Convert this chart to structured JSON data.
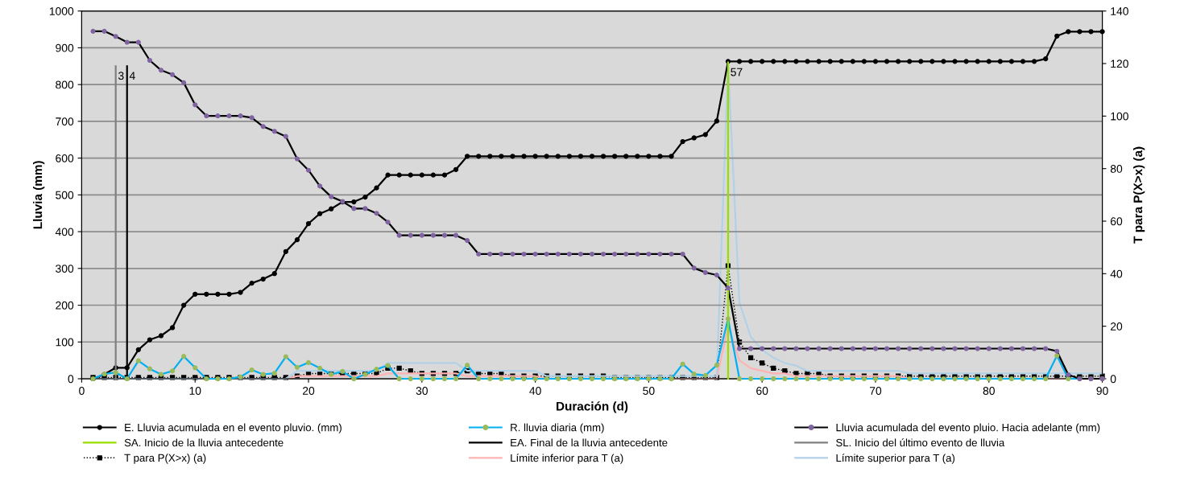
{
  "chart_data": {
    "type": "line",
    "xlabel": "Duración (d)",
    "ylabel": "Lluvia (mm)",
    "y2label": "T para P(X>x) (a)",
    "x": [
      1,
      2,
      3,
      4,
      5,
      6,
      7,
      8,
      9,
      10,
      11,
      12,
      13,
      14,
      15,
      16,
      17,
      18,
      19,
      20,
      21,
      22,
      23,
      24,
      25,
      26,
      27,
      28,
      29,
      30,
      31,
      32,
      33,
      34,
      35,
      36,
      37,
      38,
      39,
      40,
      41,
      42,
      43,
      44,
      45,
      46,
      47,
      48,
      49,
      50,
      51,
      52,
      53,
      54,
      55,
      56,
      57,
      58,
      59,
      60,
      61,
      62,
      63,
      64,
      65,
      66,
      67,
      68,
      69,
      70,
      71,
      72,
      73,
      74,
      75,
      76,
      77,
      78,
      79,
      80,
      81,
      82,
      83,
      84,
      85,
      86,
      87,
      88,
      89,
      90
    ],
    "xlim": [
      0,
      90
    ],
    "xticks": [
      0,
      10,
      20,
      30,
      40,
      50,
      60,
      70,
      80,
      90
    ],
    "ylim": [
      0,
      1000
    ],
    "yticks": [
      0,
      100,
      200,
      300,
      400,
      500,
      600,
      700,
      800,
      900,
      1000
    ],
    "y2lim": [
      0,
      140
    ],
    "y2ticks": [
      0,
      20,
      40,
      60,
      80,
      100,
      120,
      140
    ],
    "grid": "y",
    "legend": "bottom",
    "series": [
      {
        "name": "E. Lluvia acumulada en el evento pluvio. (mm)",
        "color": "#000000",
        "marker": "circle",
        "line_style": "solid",
        "values": [
          0,
          12,
          30,
          30,
          79,
          106,
          117,
          139,
          200,
          230,
          230,
          230,
          230,
          235,
          260,
          271,
          286,
          346,
          378,
          422,
          449,
          462,
          481,
          481,
          494,
          519,
          554,
          554,
          554,
          554,
          554,
          554,
          569,
          605,
          605,
          605,
          605,
          605,
          605,
          605,
          605,
          605,
          605,
          605,
          605,
          605,
          605,
          605,
          605,
          605,
          605,
          605,
          645,
          655,
          664,
          701,
          863,
          863,
          863,
          863,
          863,
          863,
          863,
          863,
          863,
          863,
          863,
          863,
          863,
          863,
          863,
          863,
          863,
          863,
          863,
          863,
          863,
          863,
          863,
          863,
          863,
          863,
          863,
          863,
          870,
          932,
          944,
          944,
          944,
          944
        ]
      },
      {
        "name": "R. lluvia diaria (mm)",
        "color": "#00b0f0",
        "colors": [
          "#9bbb59",
          "#9bbb59",
          "#9bbb59",
          "#9bbb59",
          "#9bbb59",
          "#9bbb59",
          "#9bbb59",
          "#9bbb59",
          "#9bbb59",
          "#9bbb59",
          "#9bbb59",
          "#9bbb59",
          "#9bbb59",
          "#9bbb59",
          "#9bbb59",
          "#9bbb59",
          "#9bbb59",
          "#9bbb59",
          "#9bbb59",
          "#9bbb59",
          "#9bbb59",
          "#9bbb59",
          "#9bbb59",
          "#9bbb59",
          "#9bbb59",
          "#9bbb59",
          "#9bbb59",
          "#9bbb59",
          "#9bbb59",
          "#9bbb59",
          "#9bbb59",
          "#9bbb59",
          "#9bbb59",
          "#9bbb59",
          "#9bbb59",
          "#9bbb59",
          "#9bbb59",
          "#9bbb59",
          "#9bbb59",
          "#9bbb59",
          "#9bbb59",
          "#9bbb59",
          "#9bbb59",
          "#9bbb59",
          "#9bbb59",
          "#9bbb59",
          "#9bbb59",
          "#9bbb59",
          "#9bbb59",
          "#9bbb59",
          "#9bbb59",
          "#9bbb59",
          "#9bbb59",
          "#9bbb59",
          "#9bbb59",
          "#9bbb59",
          "#9bbb59",
          "#9bbb59",
          "#9bbb59",
          "#9bbb59",
          "#9bbb59",
          "#9bbb59",
          "#9bbb59",
          "#9bbb59",
          "#9bbb59",
          "#9bbb59",
          "#9bbb59",
          "#9bbb59",
          "#9bbb59",
          "#9bbb59",
          "#9bbb59",
          "#9bbb59",
          "#9bbb59",
          "#9bbb59",
          "#9bbb59",
          "#9bbb59",
          "#9bbb59",
          "#9bbb59",
          "#9bbb59",
          "#9bbb59",
          "#9bbb59",
          "#9bbb59",
          "#9bbb59",
          "#9bbb59",
          "#9bbb59",
          "#9bbb59",
          "#9bbb59",
          "#9bbb59",
          "#9bbb59",
          "#9bbb59"
        ],
        "marker": "circle",
        "line_style": "solid",
        "values": [
          0,
          13,
          17,
          0,
          49,
          27,
          12,
          21,
          61,
          30,
          0,
          0,
          0,
          5,
          24,
          12,
          15,
          60,
          31,
          44,
          29,
          12,
          20,
          0,
          12,
          26,
          36,
          0,
          0,
          0,
          0,
          0,
          0,
          37,
          0,
          0,
          0,
          0,
          0,
          0,
          0,
          0,
          0,
          0,
          0,
          0,
          0,
          0,
          0,
          0,
          0,
          0,
          40,
          13,
          9,
          37,
          163,
          0,
          0,
          0,
          0,
          0,
          0,
          0,
          0,
          0,
          0,
          0,
          0,
          0,
          0,
          0,
          0,
          0,
          0,
          0,
          0,
          0,
          0,
          0,
          0,
          0,
          0,
          0,
          0,
          63,
          0,
          0,
          0,
          0
        ]
      },
      {
        "name": "Lluvia acumulada del evento pluio. Hacia adelante (mm)",
        "color": "#000000",
        "colors": [
          "#8064a2",
          "#8064a2",
          "#8064a2",
          "#8064a2",
          "#8064a2",
          "#8064a2",
          "#8064a2",
          "#8064a2",
          "#8064a2",
          "#8064a2",
          "#8064a2",
          "#8064a2",
          "#8064a2",
          "#8064a2",
          "#8064a2",
          "#8064a2",
          "#8064a2",
          "#8064a2",
          "#8064a2",
          "#8064a2",
          "#8064a2",
          "#8064a2",
          "#8064a2",
          "#8064a2",
          "#8064a2",
          "#8064a2",
          "#8064a2",
          "#8064a2",
          "#8064a2",
          "#8064a2",
          "#8064a2",
          "#8064a2",
          "#8064a2",
          "#8064a2",
          "#8064a2",
          "#8064a2",
          "#8064a2",
          "#8064a2",
          "#8064a2",
          "#8064a2",
          "#8064a2",
          "#8064a2",
          "#8064a2",
          "#8064a2",
          "#8064a2",
          "#8064a2",
          "#8064a2",
          "#8064a2",
          "#8064a2",
          "#8064a2",
          "#8064a2",
          "#8064a2",
          "#8064a2",
          "#8064a2",
          "#8064a2",
          "#8064a2",
          "#8064a2",
          "#8064a2",
          "#8064a2",
          "#8064a2",
          "#8064a2",
          "#8064a2",
          "#8064a2",
          "#8064a2",
          "#8064a2",
          "#8064a2",
          "#8064a2",
          "#8064a2",
          "#8064a2",
          "#8064a2",
          "#8064a2",
          "#8064a2",
          "#8064a2",
          "#8064a2",
          "#8064a2",
          "#8064a2",
          "#8064a2",
          "#8064a2",
          "#8064a2",
          "#8064a2",
          "#8064a2",
          "#8064a2",
          "#8064a2",
          "#8064a2",
          "#8064a2",
          "#8064a2",
          "#8064a2",
          "#8064a2",
          "#8064a2",
          "#8064a2"
        ],
        "marker": "circle",
        "line_style": "solid",
        "values": [
          945,
          945,
          931,
          915,
          915,
          866,
          839,
          827,
          805,
          745,
          715,
          715,
          715,
          715,
          710,
          686,
          673,
          659,
          598,
          567,
          524,
          495,
          482,
          463,
          463,
          450,
          426,
          390,
          390,
          390,
          390,
          390,
          390,
          376,
          339,
          339,
          339,
          339,
          339,
          339,
          339,
          339,
          339,
          339,
          339,
          339,
          339,
          339,
          339,
          339,
          339,
          339,
          339,
          301,
          289,
          282,
          247,
          82,
          82,
          82,
          82,
          82,
          82,
          82,
          82,
          82,
          82,
          82,
          82,
          82,
          82,
          82,
          82,
          82,
          82,
          82,
          82,
          82,
          82,
          82,
          82,
          82,
          82,
          82,
          82,
          75,
          11,
          0,
          0,
          0
        ]
      },
      {
        "name": "SA. Inicio de la lluvia antecedente",
        "color": "#99dd00",
        "line_style": "solid",
        "x": [
          57,
          57
        ],
        "values": [
          0,
          860
        ]
      },
      {
        "name": "EA. Final de la lluvia antecedente",
        "color": "#000000",
        "line_style": "solid",
        "x": [
          4,
          4
        ],
        "values": [
          0,
          850
        ]
      },
      {
        "name": "SL. Inicio del último evento de lluvia",
        "color": "#808080",
        "line_style": "solid",
        "x": [
          3,
          3
        ],
        "values": [
          0,
          850
        ]
      },
      {
        "name": "T para P(X>x) (a)",
        "color": "#000000",
        "marker": "square",
        "line_style": "dotted",
        "axis": "y2",
        "values": [
          0.5,
          0.5,
          0.5,
          0.5,
          0.5,
          0.5,
          0.5,
          0.5,
          0.5,
          0.5,
          0.5,
          0.5,
          0.5,
          0.5,
          0.5,
          0.5,
          0.5,
          0.5,
          1,
          2,
          2,
          2,
          2,
          2,
          2,
          2,
          4,
          4,
          3,
          2,
          2,
          2,
          2,
          3,
          2,
          2,
          2,
          1,
          1,
          1,
          1,
          1,
          1,
          1,
          1,
          1,
          0.5,
          0.5,
          0.5,
          0.5,
          0.5,
          0.5,
          0.5,
          0.5,
          0.5,
          0.5,
          43,
          14,
          8,
          6,
          4,
          3,
          2,
          2,
          2,
          1,
          1,
          1,
          1,
          1,
          1,
          1,
          1,
          1,
          1,
          1,
          1,
          1,
          1,
          1,
          1,
          1,
          1,
          1,
          1,
          1,
          1,
          1,
          1,
          1
        ]
      },
      {
        "name": "Límite inferior para T (a)",
        "color": "#ffb3b3",
        "line_style": "solid",
        "axis": "y2",
        "values": [
          0,
          0,
          0,
          0,
          0,
          0,
          0,
          0,
          0,
          0,
          0,
          0,
          0,
          0,
          0,
          0,
          0,
          0,
          1,
          1,
          1,
          1,
          1,
          1,
          1,
          1,
          2,
          2,
          2,
          2,
          2,
          2,
          2,
          1,
          1,
          1,
          1,
          1,
          1,
          1,
          0,
          0,
          0,
          0,
          0,
          0,
          0,
          0,
          0,
          0,
          0,
          0,
          0,
          0,
          0,
          0,
          20,
          7,
          4,
          3,
          2,
          2,
          1,
          1,
          1,
          1,
          1,
          1,
          1,
          1,
          1,
          1,
          0,
          0,
          0,
          0,
          0,
          0,
          0,
          0,
          0,
          0,
          0,
          0,
          0,
          0,
          0,
          0,
          0,
          0
        ]
      },
      {
        "name": "Límite superior para T (a)",
        "color": "#b3d1e6",
        "line_style": "solid",
        "axis": "y2",
        "values": [
          0,
          0,
          0,
          0,
          0,
          0,
          0,
          0,
          0,
          0,
          0,
          0,
          0,
          0,
          0,
          0,
          0,
          0,
          3,
          3,
          3,
          3,
          3,
          3,
          3,
          3,
          6,
          6,
          6,
          6,
          6,
          6,
          6,
          3,
          3,
          3,
          3,
          3,
          3,
          3,
          1,
          1,
          1,
          1,
          1,
          1,
          1,
          1,
          1,
          1,
          1,
          1,
          1,
          1,
          1,
          1,
          120,
          29,
          16,
          11,
          8,
          6,
          5,
          3,
          3,
          3,
          3,
          3,
          3,
          3,
          3,
          3,
          2,
          2,
          2,
          2,
          2,
          2,
          2,
          2,
          2,
          2,
          2,
          2,
          2,
          2,
          2,
          2,
          2,
          2
        ]
      }
    ],
    "annotations": [
      {
        "text": "3",
        "x": 3,
        "y": 850
      },
      {
        "text": "4",
        "x": 4,
        "y": 850
      },
      {
        "text": "57",
        "x": 57,
        "y": 860
      }
    ]
  }
}
